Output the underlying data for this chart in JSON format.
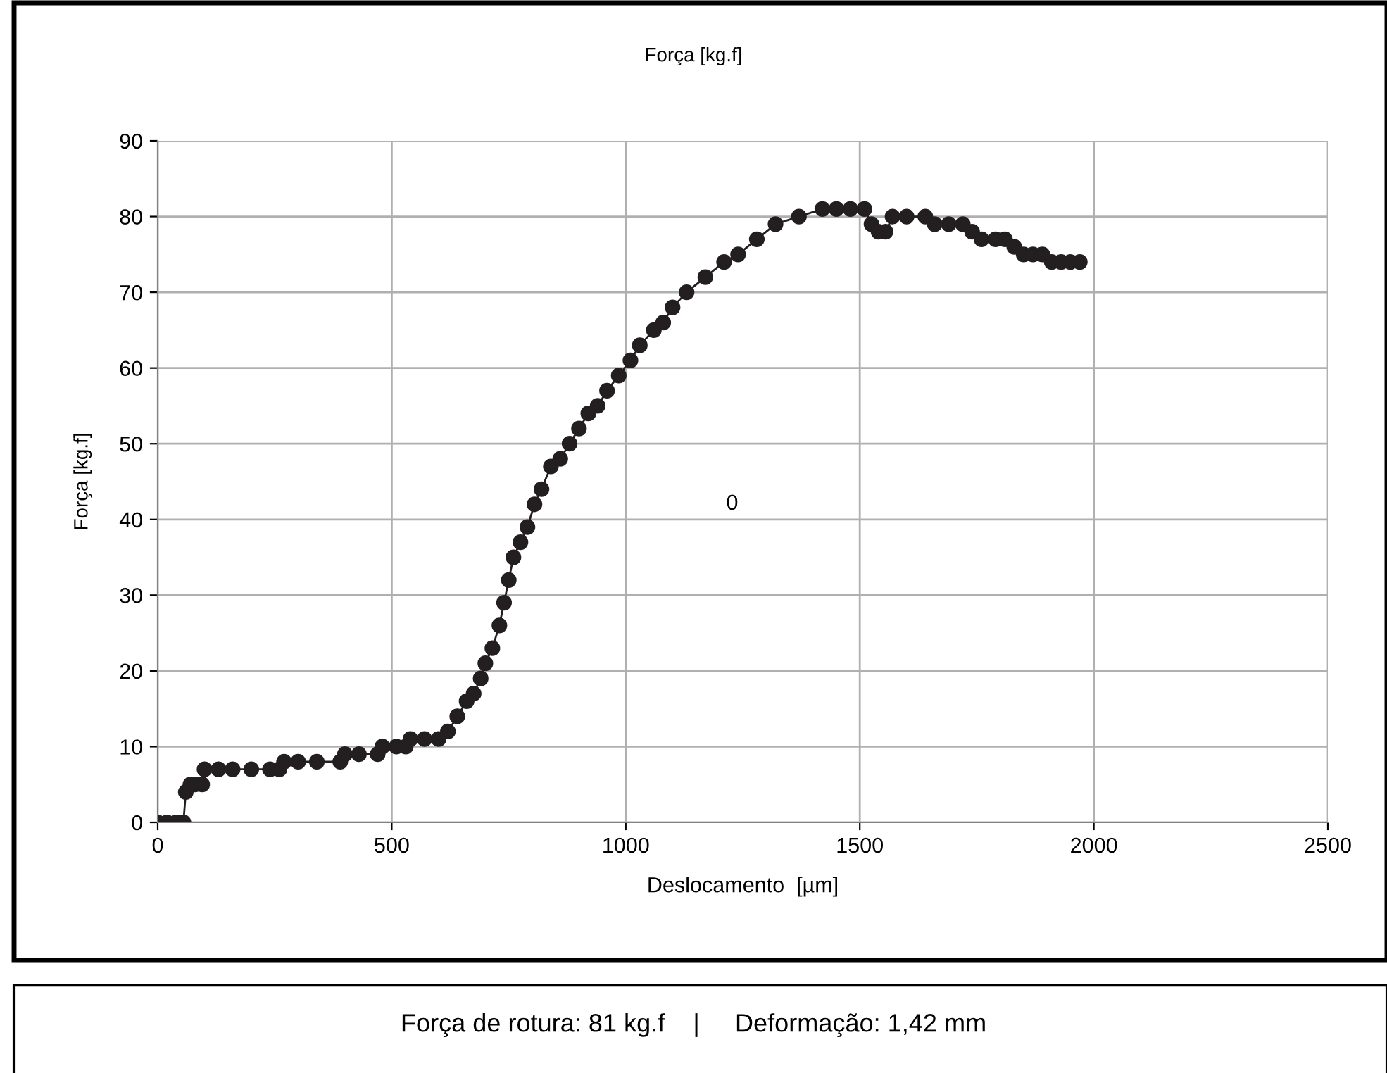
{
  "chart_data": {
    "type": "line",
    "title": "Força [kg.f]",
    "xlabel": "Deslocamento  [µm]",
    "ylabel": "Força [kg.f]",
    "x": [
      0,
      20,
      40,
      55,
      60,
      70,
      80,
      95,
      100,
      130,
      160,
      200,
      240,
      260,
      270,
      300,
      340,
      390,
      400,
      430,
      470,
      480,
      510,
      530,
      540,
      570,
      600,
      620,
      640,
      660,
      675,
      690,
      700,
      715,
      730,
      740,
      750,
      760,
      775,
      790,
      805,
      820,
      840,
      860,
      880,
      900,
      920,
      940,
      960,
      985,
      1010,
      1030,
      1060,
      1080,
      1100,
      1130,
      1170,
      1210,
      1240,
      1280,
      1320,
      1370,
      1420,
      1450,
      1480,
      1510,
      1525,
      1540,
      1555,
      1570,
      1600,
      1640,
      1660,
      1690,
      1720,
      1740,
      1760,
      1790,
      1810,
      1830,
      1850,
      1870,
      1890,
      1910,
      1930,
      1950,
      1970
    ],
    "series": [
      {
        "color": "#231f20",
        "values": [
          0,
          0,
          0,
          0,
          4,
          5,
          5,
          5,
          7,
          7,
          7,
          7,
          7,
          7,
          8,
          8,
          8,
          8,
          9,
          9,
          9,
          10,
          10,
          10,
          11,
          11,
          11,
          12,
          14,
          16,
          17,
          19,
          21,
          23,
          26,
          29,
          32,
          35,
          37,
          39,
          42,
          44,
          47,
          48,
          50,
          52,
          54,
          55,
          57,
          59,
          61,
          63,
          65,
          66,
          68,
          70,
          72,
          74,
          75,
          77,
          79,
          80,
          81,
          81,
          81,
          81,
          79,
          78,
          78,
          80,
          80,
          80,
          79,
          79,
          79,
          78,
          77,
          77,
          77,
          76,
          75,
          75,
          75,
          74,
          74,
          74,
          74
        ]
      }
    ],
    "xlim": [
      0,
      2500
    ],
    "xticks": [
      0,
      500,
      1000,
      1500,
      2000,
      2500
    ],
    "ylim": [
      0,
      90
    ],
    "yticks": [
      0,
      10,
      20,
      30,
      40,
      50,
      60,
      70,
      80,
      90
    ],
    "grid": true,
    "legend": false,
    "marker": "circle",
    "line_style": "solid",
    "annotations": [
      "0",
      "Força de rotura: 81 kg.f    |     Deformação: 1,42 mm"
    ]
  }
}
